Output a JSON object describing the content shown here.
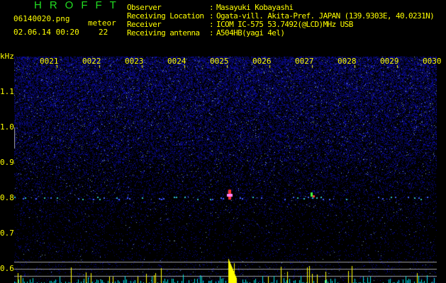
{
  "header": {
    "app_title": "HROFFT",
    "filename": "06140020.png",
    "datetime": "02.06.14 00:20",
    "meteor_label": "meteor",
    "meteor_count": "22"
  },
  "info": [
    {
      "label": "Observer",
      "value": "Masayuki Kobayashi"
    },
    {
      "label": "Receiving Location",
      "value": "Ogata-vill. Akita-Pref. JAPAN (139.9303E, 40.0231N)"
    },
    {
      "label": "Receiver",
      "value": "ICOM IC-575 53.7492(@LCD)MHz USB"
    },
    {
      "label": "Receiving antenna",
      "value": "A504HB(yagi 4el)"
    }
  ],
  "separator": ":",
  "axis": {
    "unit": "kHz",
    "y_ticks": [
      "1.1",
      "1.0",
      "0.9",
      "0.8",
      "0.7",
      "0.6"
    ],
    "x_ticks": [
      "0021",
      "0022",
      "0023",
      "0024",
      "0025",
      "0026",
      "0027",
      "0028",
      "0029",
      "0030"
    ]
  },
  "colors": {
    "text": "#ffff00",
    "title": "#22dd22",
    "noise": "#1a1aa0",
    "echo_bar": "#ffff00",
    "noise_bar": "#00e0e0"
  }
}
